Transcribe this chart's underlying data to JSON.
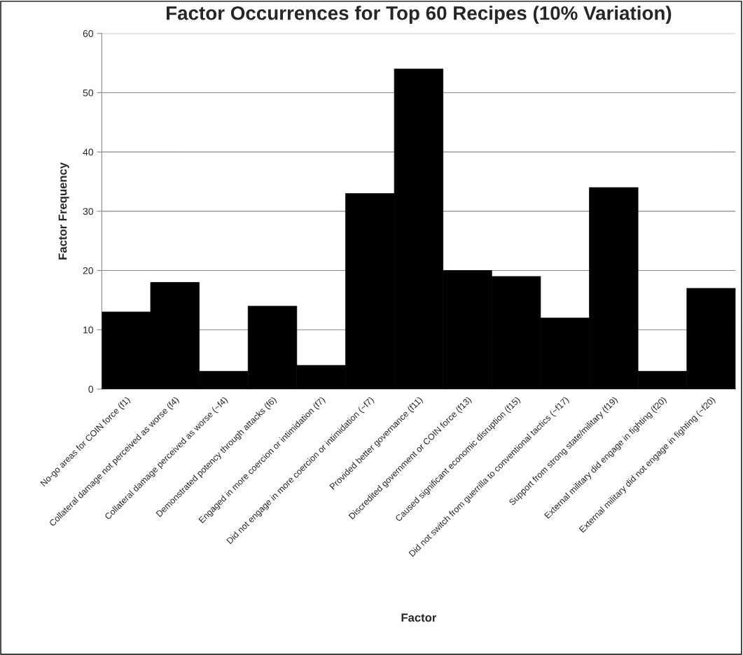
{
  "chart_data": {
    "type": "bar",
    "title": "Factor Occurrences for Top 60 Recipes (10% Variation)",
    "xlabel": "Factor",
    "ylabel": "Factor Frequency",
    "categories": [
      "No-go areas for COIN force (f1)",
      "Collateral damage not perceived as worse (f4)",
      "Collateral damage perceived as worse (~f4)",
      "Demonstrated potency through attacks (f6)",
      "Engaged in more coercion or intimidation (f7)",
      "Did not engage in more coercion or intimidation (~f7)",
      "Provided better governance (f11)",
      "Discredited government or COIN force (f13)",
      "Caused significant economic disruption (f15)",
      "Did not switch from guerrilla to conventional tactics (~f17)",
      "Support from strong state/military (f19)",
      "External military did engage in fighting (f20)",
      "External military did not engage in fighting (~f20)"
    ],
    "values": [
      13,
      18,
      3,
      14,
      4,
      33,
      54,
      20,
      19,
      12,
      34,
      3,
      17
    ],
    "color": "#000000",
    "ylim": [
      0,
      60
    ],
    "yticks": [
      0,
      10,
      20,
      30,
      40,
      50,
      60
    ],
    "grid": "y",
    "legend": false
  }
}
